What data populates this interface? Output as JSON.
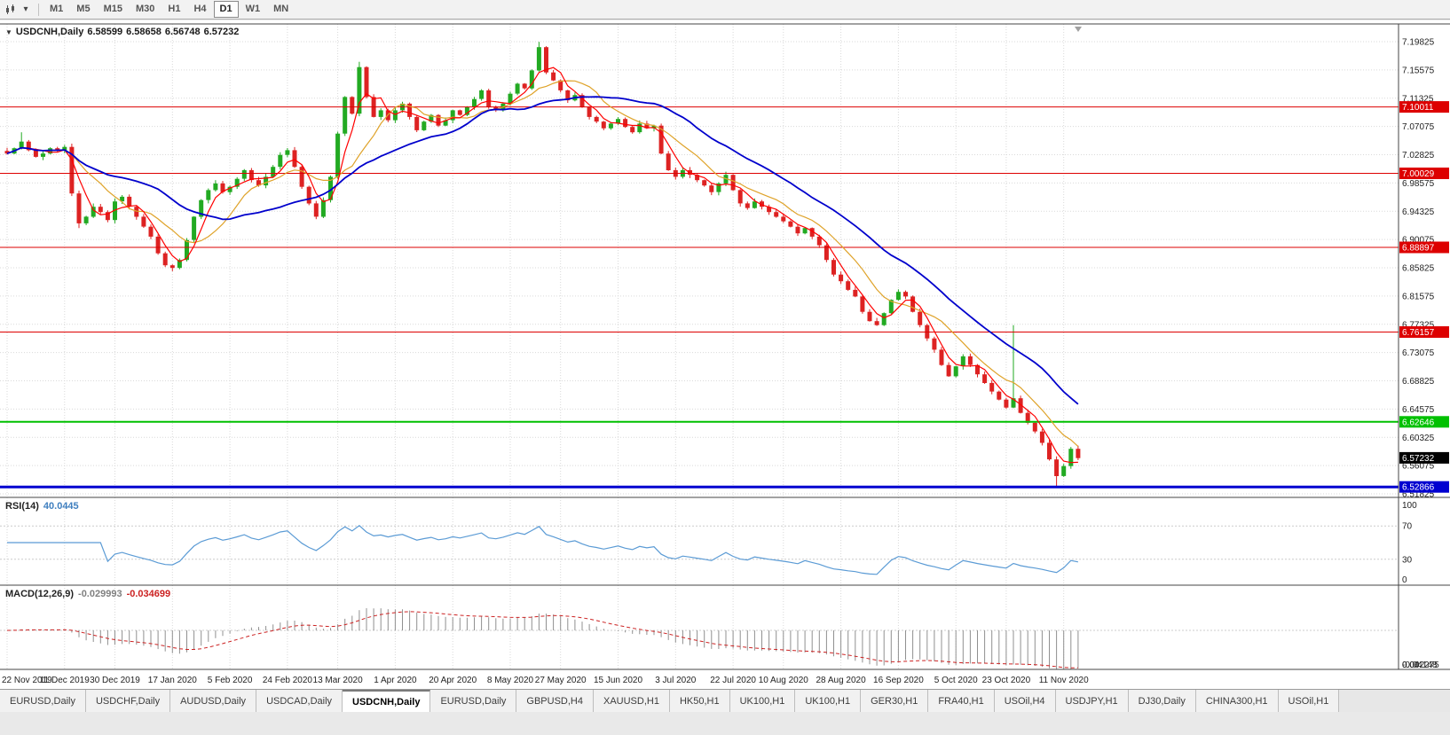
{
  "toolbar": {
    "timeframes": [
      "M1",
      "M5",
      "M15",
      "M30",
      "H1",
      "H4",
      "D1",
      "W1",
      "MN"
    ],
    "active_timeframe": "D1",
    "chart_type_icon": "candlestick-chart",
    "dropdown_icon": "▾"
  },
  "chart": {
    "title": "USDCNH,Daily",
    "ohlc": {
      "open": "6.58599",
      "high": "6.58658",
      "low": "6.56748",
      "close": "6.57232"
    }
  },
  "rsi_panel": {
    "label": "RSI(14)",
    "value": "40.0445"
  },
  "macd_panel": {
    "label": "MACD(12,26,9)",
    "value1": "-0.029993",
    "value2": "-0.034699"
  },
  "price_axis": {
    "labels": [
      "7.19825",
      "7.15575",
      "7.11325",
      "7.07075",
      "7.02825",
      "6.98575",
      "6.94325",
      "6.90075",
      "6.85825",
      "6.81575",
      "6.77325",
      "6.73075",
      "6.68825",
      "6.64575",
      "6.60325",
      "6.56075",
      "6.51825"
    ]
  },
  "tabs": {
    "active_index": 4,
    "labels": [
      "EURUSD,Daily",
      "USDCHF,Daily",
      "AUDUSD,Daily",
      "USDCAD,Daily",
      "USDCNH,Daily",
      "EURUSD,Daily",
      "GBPUSD,H4",
      "XAUUSD,H1",
      "HK50,H1",
      "UK100,H1",
      "UK100,H1",
      "GER30,H1",
      "FRA40,H1",
      "USOil,H4",
      "USDJPY,H1",
      "DJ30,Daily",
      "CHINA300,H1",
      "USOil,H1"
    ]
  },
  "chart_data": {
    "type": "candlestick",
    "symbol": "USDCNH",
    "timeframe": "Daily",
    "title": "USDCNH,Daily",
    "current_ohlc": {
      "open": 6.58599,
      "high": 6.58658,
      "low": 6.56748,
      "close": 6.57232
    },
    "current_price": 6.57232,
    "ylim": [
      6.51825,
      7.19825
    ],
    "y_gridlines": [
      7.19825,
      7.15575,
      7.11325,
      7.07075,
      7.02825,
      6.98575,
      6.94325,
      6.90075,
      6.85825,
      6.81575,
      6.77325,
      6.73075,
      6.68825,
      6.64575,
      6.60325,
      6.56075,
      6.51825
    ],
    "x_tick_labels": [
      "22 Nov 2019",
      "11 Dec 2019",
      "30 Dec 2019",
      "17 Jan 2020",
      "5 Feb 2020",
      "24 Feb 2020",
      "13 Mar 2020",
      "1 Apr 2020",
      "20 Apr 2020",
      "8 May 2020",
      "27 May 2020",
      "15 Jun 2020",
      "3 Jul 2020",
      "22 Jul 2020",
      "10 Aug 2020",
      "28 Aug 2020",
      "16 Sep 2020",
      "5 Oct 2020",
      "23 Oct 2020",
      "11 Nov 2020"
    ],
    "tick_indices": [
      0,
      8,
      15,
      23,
      31,
      39,
      46,
      54,
      62,
      70,
      77,
      85,
      93,
      101,
      108,
      116,
      124,
      132,
      139,
      147
    ],
    "closes": [
      7.03,
      7.038,
      7.048,
      7.035,
      7.025,
      7.03,
      7.038,
      7.035,
      7.04,
      6.97,
      6.925,
      6.935,
      6.95,
      6.942,
      6.93,
      6.958,
      6.965,
      6.95,
      6.935,
      6.92,
      6.905,
      6.88,
      6.862,
      6.858,
      6.87,
      6.9,
      6.935,
      6.96,
      6.975,
      6.985,
      6.972,
      6.98,
      6.992,
      7.005,
      6.99,
      6.982,
      6.995,
      7.01,
      7.028,
      7.035,
      7.01,
      6.98,
      6.955,
      6.935,
      6.96,
      6.995,
      7.06,
      7.115,
      7.09,
      7.16,
      7.115,
      7.085,
      7.095,
      7.08,
      7.095,
      7.105,
      7.085,
      7.065,
      7.078,
      7.088,
      7.072,
      7.08,
      7.095,
      7.088,
      7.1,
      7.112,
      7.125,
      7.1,
      7.095,
      7.105,
      7.12,
      7.135,
      7.128,
      7.155,
      7.19,
      7.152,
      7.14,
      7.125,
      7.11,
      7.118,
      7.1,
      7.085,
      7.078,
      7.068,
      7.075,
      7.082,
      7.07,
      7.062,
      7.075,
      7.068,
      7.072,
      7.03,
      7.005,
      6.995,
      7.005,
      6.998,
      6.99,
      6.982,
      6.972,
      6.985,
      6.998,
      6.975,
      6.955,
      6.948,
      6.958,
      6.95,
      6.942,
      6.935,
      6.928,
      6.92,
      6.91,
      6.918,
      6.905,
      6.892,
      6.87,
      6.848,
      6.838,
      6.825,
      6.815,
      6.792,
      6.778,
      6.772,
      6.79,
      6.81,
      6.822,
      6.815,
      6.792,
      6.772,
      6.752,
      6.735,
      6.712,
      6.695,
      6.71,
      6.725,
      6.712,
      6.698,
      6.685,
      6.672,
      6.66,
      6.648,
      6.662,
      6.64,
      6.625,
      6.612,
      6.595,
      6.57,
      6.545,
      6.56,
      6.586,
      6.572
    ],
    "wick_overrides": [
      {
        "i": 2,
        "high": 7.062
      },
      {
        "i": 10,
        "low": 6.918
      },
      {
        "i": 23,
        "low": 6.853
      },
      {
        "i": 49,
        "high": 7.168
      },
      {
        "i": 74,
        "high": 7.198
      },
      {
        "i": 140,
        "high": 6.772
      },
      {
        "i": 146,
        "low": 6.528
      }
    ],
    "levels": [
      {
        "value": 7.10011,
        "color": "#dd0000",
        "width": 1
      },
      {
        "value": 7.00029,
        "color": "#dd0000",
        "width": 1
      },
      {
        "value": 6.88897,
        "color": "#dd0000",
        "width": 1
      },
      {
        "value": 6.76157,
        "color": "#dd0000",
        "width": 1
      },
      {
        "value": 6.62646,
        "color": "#00c000",
        "width": 2
      },
      {
        "value": 6.52866,
        "color": "#0000d0",
        "width": 3
      }
    ],
    "ma_periods": {
      "fast": 4,
      "mid": 9,
      "slow": 22
    },
    "colors": {
      "up": "#22aa22",
      "down": "#dd2222",
      "ma_fast": "#ff0000",
      "ma_mid": "#dfa32a",
      "ma_slow": "#0000cc",
      "rsi": "#5b9bd5",
      "macd_hist": "#909090",
      "macd_signal": "#cc2222",
      "grid": "#d9d9d9",
      "separator": "#444444"
    },
    "indicators": {
      "rsi": {
        "label": "RSI(14)",
        "value": 40.0445,
        "period": 14,
        "levels": [
          70,
          30
        ],
        "axis": [
          100,
          70,
          30,
          0
        ]
      },
      "macd": {
        "label": "MACD(12,26,9)",
        "macd": -0.029993,
        "signal": -0.034699,
        "axis_values": [
          0.042275,
          0,
          -0.04148
        ],
        "axis_labels": [
          "0.042275",
          "0.00",
          "-0.04148"
        ]
      }
    }
  }
}
